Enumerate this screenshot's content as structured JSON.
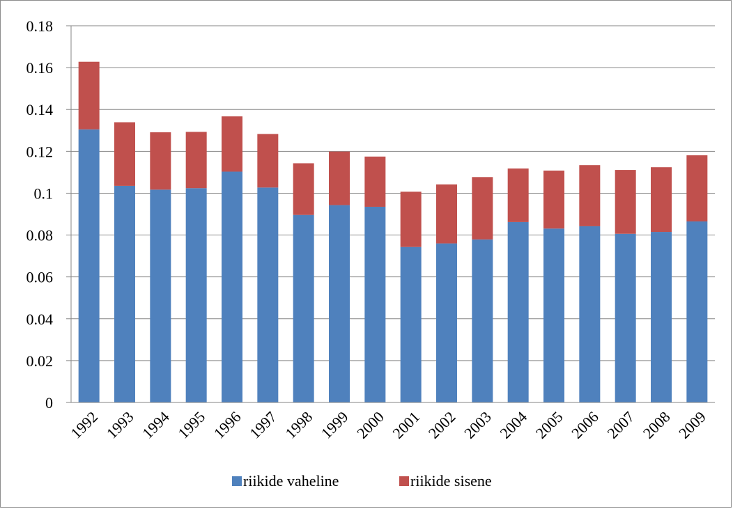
{
  "chart_data": {
    "type": "bar",
    "stacked": true,
    "title": "",
    "xlabel": "",
    "ylabel": "",
    "categories": [
      "1992",
      "1993",
      "1994",
      "1995",
      "1996",
      "1997",
      "1998",
      "1999",
      "2000",
      "2001",
      "2002",
      "2003",
      "2004",
      "2005",
      "2006",
      "2007",
      "2008",
      "2009"
    ],
    "series": [
      {
        "name": "riikide vaheline",
        "color": "#4F81BD",
        "values": [
          0.1305,
          0.1035,
          0.1017,
          0.1024,
          0.1103,
          0.1027,
          0.0896,
          0.0943,
          0.0935,
          0.0743,
          0.076,
          0.0779,
          0.0862,
          0.0831,
          0.0842,
          0.0806,
          0.0815,
          0.0865
        ]
      },
      {
        "name": "riikide sisene",
        "color": "#C0504D",
        "values": [
          0.0323,
          0.0304,
          0.0274,
          0.0269,
          0.0264,
          0.0256,
          0.0247,
          0.0256,
          0.024,
          0.0264,
          0.0282,
          0.0298,
          0.0256,
          0.0277,
          0.0292,
          0.0305,
          0.0309,
          0.0316
        ]
      }
    ],
    "ylim": [
      0,
      0.18
    ],
    "yticks": [
      "0",
      "0.02",
      "0.04",
      "0.06",
      "0.08",
      "0.1",
      "0.12",
      "0.14",
      "0.16",
      "0.18"
    ],
    "grid": true,
    "gridline_color": "#868686",
    "legend_position": "bottom"
  }
}
